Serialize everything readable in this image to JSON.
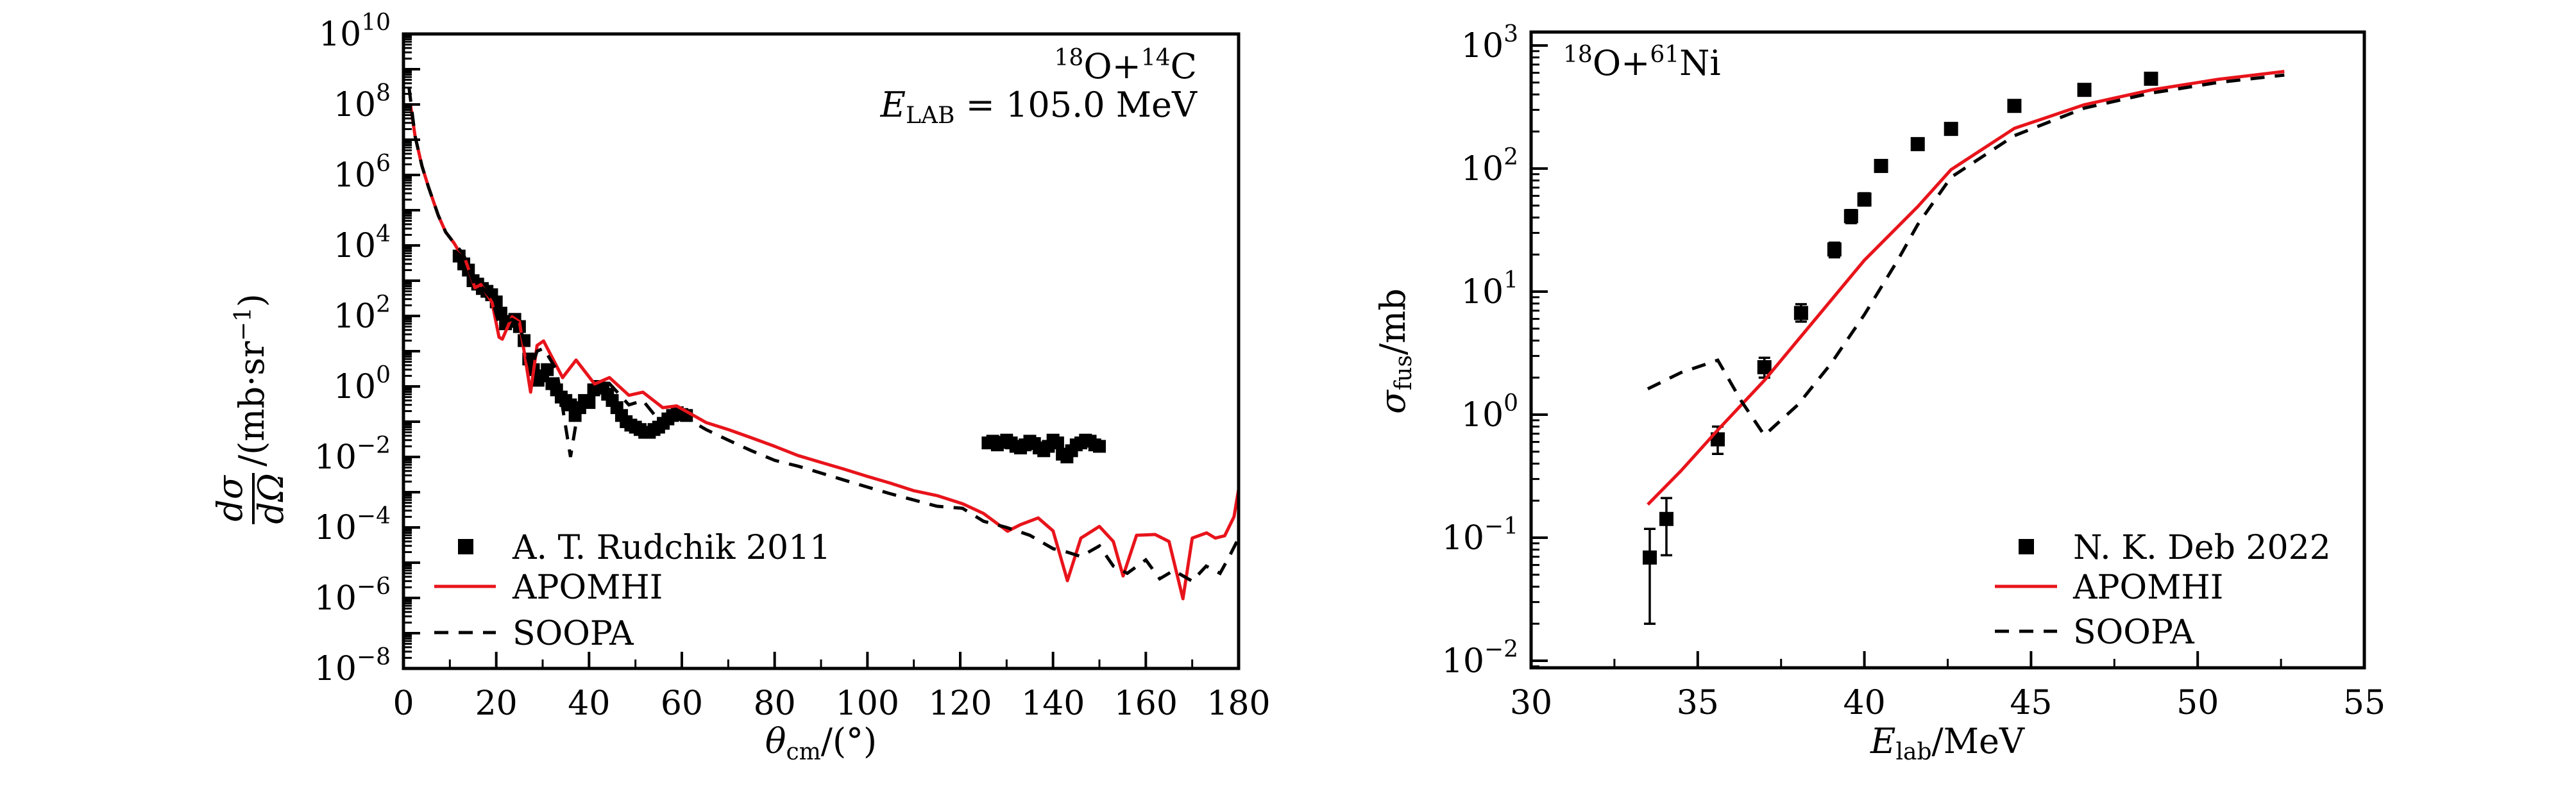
{
  "chart_data": [
    {
      "type": "scatter",
      "panel": "left",
      "title": "",
      "annotation_lines": [
        "¹⁸O+¹⁴C",
        "E_LAB = 105.0 MeV"
      ],
      "annotation": {
        "reaction": {
          "a": "18",
          "p": "O",
          "plus": "+",
          "b": "14",
          "t": "C"
        },
        "energy": {
          "E": "E",
          "sub": "LAB",
          "rest": " = 105.0 MeV"
        }
      },
      "xlabel": {
        "sym": "θ",
        "sub": "cm",
        "rest": "/(°)"
      },
      "ylabel": {
        "num": "dσ",
        "den": "dΩ",
        "rest": "/(mb·sr",
        "sup": "−1",
        "close": ")"
      },
      "xscale": "linear",
      "yscale": "log",
      "xlim": [
        0,
        180
      ],
      "ylim": [
        1e-08,
        10000000000.0
      ],
      "xticks": [
        0,
        20,
        40,
        60,
        80,
        100,
        120,
        140,
        160,
        180
      ],
      "xtick_labels": [
        "0",
        "20",
        "40",
        "60",
        "80",
        "100",
        "120",
        "140",
        "160",
        "180"
      ],
      "yticks_exp": [
        -8,
        -6,
        -4,
        -2,
        0,
        2,
        4,
        6,
        8,
        10
      ],
      "ytick_labels": [
        "10^-8",
        "10^-6",
        "10^-4",
        "10^-2",
        "10^0",
        "10^2",
        "10^4",
        "10^6",
        "10^8",
        "10^10"
      ],
      "legend_position": "bottom-left",
      "grid": false,
      "series": [
        {
          "name": "A. T. Rudchik 2011",
          "kind": "markers",
          "color": "#000000",
          "x": [
            12,
            13,
            14,
            15,
            16,
            17,
            18,
            19,
            20,
            21,
            22,
            23,
            24,
            25,
            26,
            27,
            28,
            29,
            30,
            31,
            32,
            33,
            34,
            35,
            36,
            37,
            38,
            39,
            40,
            41,
            42,
            43,
            44,
            45,
            46,
            47,
            48,
            49,
            50,
            51,
            52,
            53,
            54,
            55,
            56,
            57,
            58,
            59,
            60,
            61,
            126,
            127,
            128,
            129,
            130,
            131,
            132,
            133,
            134,
            135,
            136,
            137,
            138,
            139,
            140,
            141,
            142,
            143,
            144,
            145,
            146,
            147,
            148,
            149,
            150
          ],
          "y": [
            5000,
            3000,
            2000,
            1000,
            800,
            600,
            500,
            400,
            250,
            120,
            60,
            70,
            80,
            50,
            20,
            6,
            3,
            1.5,
            2,
            3,
            1.2,
            0.8,
            0.5,
            0.4,
            0.3,
            0.15,
            0.25,
            0.4,
            0.35,
            0.8,
            1,
            0.9,
            0.6,
            0.4,
            0.25,
            0.15,
            0.1,
            0.08,
            0.07,
            0.06,
            0.05,
            0.05,
            0.06,
            0.07,
            0.09,
            0.12,
            0.15,
            0.18,
            0.16,
            0.15,
            0.025,
            0.028,
            0.022,
            0.026,
            0.03,
            0.025,
            0.02,
            0.018,
            0.022,
            0.028,
            0.024,
            0.018,
            0.015,
            0.02,
            0.03,
            0.025,
            0.012,
            0.01,
            0.015,
            0.022,
            0.025,
            0.03,
            0.028,
            0.022,
            0.02
          ]
        },
        {
          "name": "APOMHI",
          "kind": "line",
          "color": "#e8141b",
          "x": [
            1.5,
            2.5,
            4.0,
            5.4,
            7.5,
            9.1,
            10.9,
            11.7,
            12.9,
            15.4,
            16.7,
            19.1,
            20.6,
            21.3,
            23.4,
            25.0,
            27.4,
            28.8,
            30.2,
            34.3,
            37.2,
            41.2,
            44.4,
            48.6,
            51.6,
            55.9,
            58.9,
            65.2,
            70,
            75,
            80,
            85,
            90,
            95,
            100,
            105,
            110,
            115,
            120.5,
            125,
            130.2,
            133,
            136.8,
            140,
            143.1,
            146,
            150.0,
            153,
            155.1,
            158,
            162.0,
            165,
            168.0,
            170,
            173.1,
            175,
            177.0,
            179,
            180
          ],
          "y": [
            100000000.0,
            12600000.0,
            1780000.0,
            450000.0,
            71000.0,
            24000.0,
            11700.0,
            7800.0,
            5800.0,
            630,
            780,
            240,
            25,
            22,
            95,
            69,
            0.69,
            14.5,
            19.5,
            1.78,
            5.6,
            1.17,
            1.78,
            0.56,
            0.69,
            0.25,
            0.28,
            0.095,
            0.06,
            0.035,
            0.02,
            0.011,
            0.007,
            0.0045,
            0.0028,
            0.0018,
            0.0011,
            0.0008,
            0.00047,
            0.00025,
            7.8e-05,
            0.00012,
            0.000186,
            8e-05,
            3.1e-06,
            5e-05,
            0.000107,
            4e-05,
            4.2e-06,
            6e-05,
            6.3e-05,
            4e-05,
            9.5e-07,
            5e-05,
            7e-05,
            5e-05,
            5.8e-05,
            0.0002,
            0.0012
          ]
        },
        {
          "name": "SOOPA",
          "kind": "dashed",
          "color": "#000000",
          "x": [
            1.2,
            2.5,
            4.0,
            5.4,
            7.5,
            9.1,
            10.9,
            12.9,
            15.4,
            16.7,
            19.1,
            20.6,
            23.4,
            25.0,
            27.4,
            28.8,
            30.2,
            33,
            36,
            38,
            41.2,
            44.4,
            48.6,
            51.6,
            55.9,
            58.9,
            65.2,
            70,
            75,
            80,
            85,
            90,
            95,
            100,
            105,
            110,
            115,
            120.5,
            125,
            130,
            135,
            140,
            143,
            146,
            150,
            153,
            156,
            160,
            163,
            166,
            170,
            173,
            176,
            178,
            180
          ],
          "y": [
            300000000.0,
            12600000.0,
            1780000.0,
            450000.0,
            71000.0,
            24000.0,
            11700.0,
            5800.0,
            700,
            700,
            300,
            60,
            80,
            60,
            3,
            10,
            12,
            3,
            0.01,
            0.4,
            0.6,
            1.2,
            0.3,
            0.4,
            0.08,
            0.18,
            0.06,
            0.03,
            0.015,
            0.008,
            0.0055,
            0.0035,
            0.0022,
            0.0014,
            0.0009,
            0.0006,
            0.0004,
            0.00035,
            0.00015,
            0.0001,
            6e-05,
            2.5e-05,
            2e-05,
            1.5e-05,
            3e-05,
            8e-06,
            5e-06,
            1.2e-05,
            3.5e-06,
            6e-06,
            3e-06,
            8e-06,
            5e-06,
            1.5e-05,
            5e-05
          ]
        }
      ]
    },
    {
      "type": "scatter",
      "panel": "right",
      "title": "",
      "annotation": {
        "a": "18",
        "p": "O",
        "plus": "+",
        "b": "61",
        "t": "Ni"
      },
      "xlabel": {
        "sym": "E",
        "sub": "lab",
        "rest": "/MeV"
      },
      "ylabel": {
        "sym": "σ",
        "sub": "fus",
        "rest": "/mb"
      },
      "xscale": "linear",
      "yscale": "log",
      "xlim": [
        30,
        55
      ],
      "ylim": [
        0.00878,
        1200
      ],
      "xticks": [
        30,
        35,
        40,
        45,
        50,
        55
      ],
      "xtick_labels": [
        "30",
        "35",
        "40",
        "45",
        "50",
        "55"
      ],
      "yticks_exp": [
        -2,
        -1,
        0,
        1,
        2,
        3
      ],
      "ytick_labels": [
        "10^-2",
        "10^-1",
        "10^0",
        "10^1",
        "10^2",
        "10^3"
      ],
      "legend_position": "bottom-right",
      "grid": false,
      "series": [
        {
          "name": "N. K. Deb 2022",
          "kind": "markers_with_errors",
          "color": "#000000",
          "x": [
            33.56,
            34.06,
            35.6,
            37.0,
            38.1,
            39.1,
            39.6,
            40.0,
            40.5,
            41.6,
            42.6,
            44.5,
            46.6,
            48.6
          ],
          "y": [
            0.069,
            0.142,
            0.63,
            2.43,
            6.7,
            22,
            41,
            56,
            105,
            158,
            210,
            323,
            436,
            537
          ],
          "yerr_low": [
            0.02,
            0.072,
            0.48,
            2.0,
            5.7,
            19,
            36,
            50,
            95,
            143,
            190,
            292,
            395,
            487
          ],
          "yerr_high": [
            0.118,
            0.21,
            0.8,
            2.9,
            7.9,
            25,
            46,
            63,
            116,
            175,
            230,
            355,
            480,
            590
          ]
        },
        {
          "name": "APOMHI",
          "kind": "line",
          "color": "#e8141b",
          "x": [
            33.5,
            34.5,
            35.6,
            37.0,
            38.6,
            40.0,
            41.6,
            42.6,
            44.5,
            46.6,
            48.6,
            50.6,
            52.6
          ],
          "y": [
            0.186,
            0.35,
            0.75,
            1.9,
            6.3,
            18,
            49,
            98,
            212,
            330,
            435,
            530,
            615
          ]
        },
        {
          "name": "SOOPA",
          "kind": "dashed",
          "color": "#000000",
          "x": [
            33.5,
            34.5,
            35.6,
            36.3,
            37.0,
            38.0,
            39.0,
            40.0,
            41.0,
            41.6,
            42.6,
            44.5,
            46.6,
            48.6,
            50.6,
            52.6
          ],
          "y": [
            1.62,
            2.2,
            2.77,
            1.3,
            0.68,
            1.2,
            2.6,
            6.5,
            18,
            35,
            85,
            185,
            310,
            410,
            500,
            575
          ]
        }
      ]
    }
  ]
}
